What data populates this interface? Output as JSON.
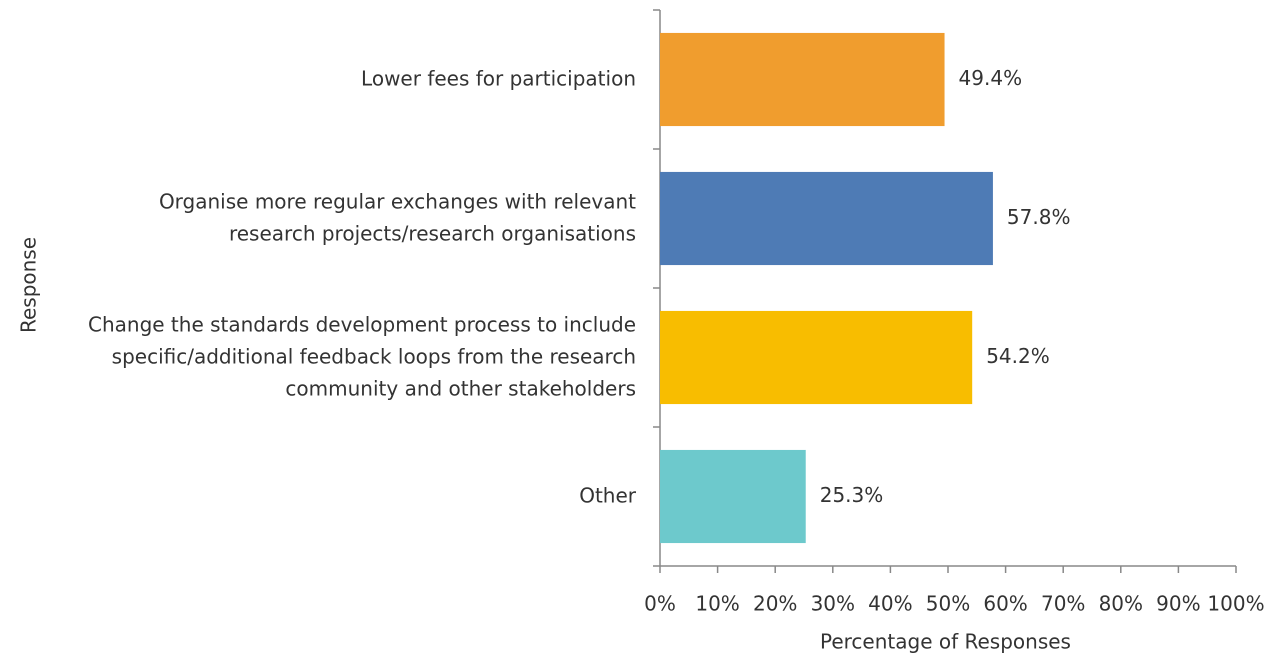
{
  "chart_data": {
    "type": "barh",
    "categories": [
      "Lower fees for participation",
      "Organise more regular exchanges with relevant\nresearch projects/research organisations",
      "Change the standards development process to include\nspecific/additional feedback loops from the research\ncommunity and other stakeholders",
      "Other"
    ],
    "values": [
      49.4,
      57.8,
      54.2,
      25.3
    ],
    "value_labels": [
      "49.4%",
      "57.8%",
      "54.2%",
      "25.3%"
    ],
    "colors": [
      "#f09d2e",
      "#4e7bb5",
      "#f8bd00",
      "#6dc9cc"
    ],
    "xlabel": "Percentage of Responses",
    "ylabel": "Response",
    "xlim": [
      0,
      100
    ],
    "xticks": [
      {
        "value": 0,
        "label": "0%"
      },
      {
        "value": 10,
        "label": "10%"
      },
      {
        "value": 20,
        "label": "20%"
      },
      {
        "value": 30,
        "label": "30%"
      },
      {
        "value": 40,
        "label": "40%"
      },
      {
        "value": 50,
        "label": "50%"
      },
      {
        "value": 60,
        "label": "60%"
      },
      {
        "value": 70,
        "label": "70%"
      },
      {
        "value": 80,
        "label": "80%"
      },
      {
        "value": 90,
        "label": "90%"
      },
      {
        "value": 100,
        "label": "100%"
      }
    ]
  }
}
